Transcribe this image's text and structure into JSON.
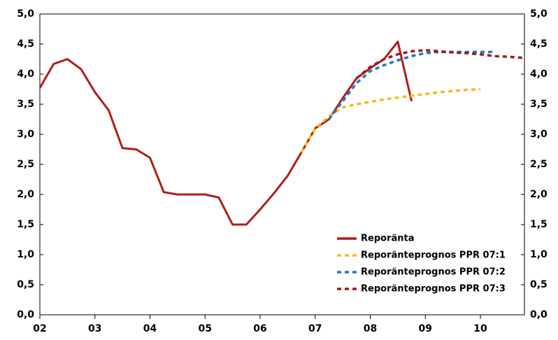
{
  "chart_data": {
    "type": "line",
    "xlim": [
      2002,
      2010.8
    ],
    "xticks": [
      {
        "value": 2002,
        "label": "02"
      },
      {
        "value": 2003,
        "label": "03"
      },
      {
        "value": 2004,
        "label": "04"
      },
      {
        "value": 2005,
        "label": "05"
      },
      {
        "value": 2006,
        "label": "06"
      },
      {
        "value": 2007,
        "label": "07"
      },
      {
        "value": 2008,
        "label": "08"
      },
      {
        "value": 2009,
        "label": "09"
      },
      {
        "value": 2010,
        "label": "10"
      }
    ],
    "ylim": [
      0,
      5
    ],
    "yticks": [
      {
        "value": 0,
        "label": "0,0"
      },
      {
        "value": 0.5,
        "label": "0,5"
      },
      {
        "value": 1,
        "label": "1,0"
      },
      {
        "value": 1.5,
        "label": "1,5"
      },
      {
        "value": 2,
        "label": "2,0"
      },
      {
        "value": 2.5,
        "label": "2,5"
      },
      {
        "value": 3,
        "label": "3,0"
      },
      {
        "value": 3.5,
        "label": "3,5"
      },
      {
        "value": 4,
        "label": "4,0"
      },
      {
        "value": 4.5,
        "label": "4,5"
      },
      {
        "value": 5,
        "label": "5,0"
      }
    ],
    "y2lim": [
      0,
      5
    ],
    "y2ticks": [
      {
        "value": 0,
        "label": "0,0"
      },
      {
        "value": 0.5,
        "label": "0,5"
      },
      {
        "value": 1,
        "label": "1,0"
      },
      {
        "value": 1.5,
        "label": "1,5"
      },
      {
        "value": 2,
        "label": "2,0"
      },
      {
        "value": 2.5,
        "label": "2,5"
      },
      {
        "value": 3,
        "label": "3,0"
      },
      {
        "value": 3.5,
        "label": "3,5"
      },
      {
        "value": 4,
        "label": "4,0"
      },
      {
        "value": 4.5,
        "label": "4,5"
      },
      {
        "value": 5,
        "label": "5,0"
      }
    ],
    "legend": "lower right",
    "series": [
      {
        "name": "Reporänta",
        "color": "#b01c1c",
        "dash": false,
        "x": [
          2002,
          2002.25,
          2002.5,
          2002.75,
          2003,
          2003.25,
          2003.5,
          2003.75,
          2004,
          2004.25,
          2004.5,
          2004.75,
          2005,
          2005.25,
          2005.5,
          2005.75,
          2006,
          2006.25,
          2006.5,
          2006.75,
          2007,
          2007.25,
          2007.5,
          2007.75,
          2008,
          2008.25,
          2008.5,
          2008.75
        ],
        "values": [
          3.77,
          4.17,
          4.25,
          4.08,
          3.7,
          3.4,
          2.77,
          2.75,
          2.61,
          2.04,
          2.0,
          2.0,
          2.0,
          1.95,
          1.5,
          1.5,
          1.75,
          2.02,
          2.31,
          2.7,
          3.1,
          3.25,
          3.6,
          3.93,
          4.1,
          4.25,
          4.54,
          3.55
        ]
      },
      {
        "name": "Reporänteprognos PPR 07:1",
        "color": "#f5bd1f",
        "dash": true,
        "x": [
          2006.75,
          2007,
          2007.25,
          2007.5,
          2007.75,
          2008,
          2008.25,
          2008.5,
          2008.75,
          2009,
          2009.25,
          2009.5,
          2009.75,
          2010
        ],
        "values": [
          2.7,
          3.1,
          3.3,
          3.45,
          3.5,
          3.54,
          3.58,
          3.61,
          3.64,
          3.67,
          3.7,
          3.72,
          3.74,
          3.75
        ]
      },
      {
        "name": "Reporänteprognos PPR 07:2",
        "color": "#1f78c8",
        "dash": true,
        "x": [
          2007.25,
          2007.5,
          2007.75,
          2008,
          2008.25,
          2008.5,
          2008.75,
          2009,
          2009.25,
          2009.5,
          2009.75,
          2010,
          2010.25
        ],
        "values": [
          3.25,
          3.55,
          3.85,
          4.05,
          4.15,
          4.23,
          4.3,
          4.35,
          4.37,
          4.37,
          4.37,
          4.37,
          4.37
        ]
      },
      {
        "name": "Reporänteprognos PPR 07:3",
        "color": "#9e1b1b",
        "dash": true,
        "x": [
          2007.75,
          2008,
          2008.25,
          2008.5,
          2008.75,
          2009,
          2009.25,
          2009.5,
          2009.75,
          2010,
          2010.25,
          2010.5,
          2010.8
        ],
        "values": [
          3.93,
          4.12,
          4.25,
          4.33,
          4.38,
          4.4,
          4.38,
          4.36,
          4.35,
          4.33,
          4.3,
          4.29,
          4.27
        ]
      }
    ]
  }
}
